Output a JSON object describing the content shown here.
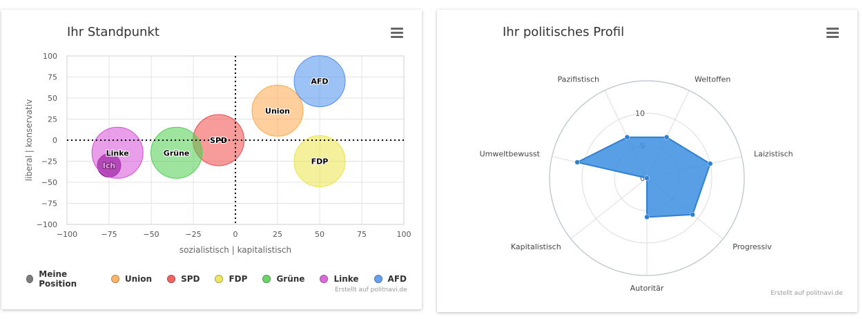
{
  "left_panel": {
    "title": "Ihr Standpunkt",
    "credit": "Erstellt auf politnavi.de",
    "menu_icon": "hamburger-menu-icon"
  },
  "right_panel": {
    "title": "Ihr politisches Profil",
    "credit": "Erstellt auf politnavi.de",
    "menu_icon": "hamburger-menu-icon"
  },
  "chart_data": [
    {
      "type": "bubble",
      "title": "Ihr Standpunkt",
      "xlabel": "sozialistisch | kapitalistisch",
      "ylabel": "liberal | konservativ",
      "xlim": [
        -100,
        100
      ],
      "ylim": [
        -100,
        100
      ],
      "xticks": [
        "−100",
        "−75",
        "−50",
        "−25",
        "0",
        "25",
        "50",
        "75",
        "100"
      ],
      "yticks": [
        "100",
        "75",
        "50",
        "25",
        "0",
        "−25",
        "−50",
        "−75",
        "−100"
      ],
      "grid": true,
      "legend_position": "bottom",
      "series": [
        {
          "name": "Meine Position",
          "label": "Ich",
          "x": -75,
          "y": -30,
          "size": "small",
          "color": "#7b1f86"
        },
        {
          "name": "Union",
          "label": "Union",
          "x": 25,
          "y": 35,
          "size": "large",
          "color": "#ffa94d"
        },
        {
          "name": "SPD",
          "label": "SPD",
          "x": -10,
          "y": 0,
          "size": "large",
          "color": "#f04848"
        },
        {
          "name": "FDP",
          "label": "FDP",
          "x": 50,
          "y": -25,
          "size": "large",
          "color": "#ebe44a"
        },
        {
          "name": "Grüne",
          "label": "Grüne",
          "x": -35,
          "y": -15,
          "size": "large",
          "color": "#4fce4f"
        },
        {
          "name": "Linke",
          "label": "Linke",
          "x": -70,
          "y": -15,
          "size": "large",
          "color": "#d64fd6"
        },
        {
          "name": "AFD",
          "label": "AFD",
          "x": 50,
          "y": 70,
          "size": "large",
          "color": "#4d8fef"
        }
      ],
      "legend_colors": {
        "Meine Position": "#666666",
        "Union": "#ffa94d",
        "SPD": "#f04848",
        "FDP": "#ebe44a",
        "Grüne": "#4fce4f",
        "Linke": "#d64fd6",
        "AFD": "#4d8fef"
      }
    },
    {
      "type": "radar",
      "title": "Ihr politisches Profil",
      "categories": [
        "Weltoffen",
        "Laizistisch",
        "Progressiv",
        "Autoritär",
        "Kapitalistisch",
        "Umweltbewusst",
        "Pazifistisch"
      ],
      "values": [
        7,
        10,
        9,
        6,
        0,
        11,
        7
      ],
      "rlim": [
        0,
        15
      ],
      "rticks": [
        "0",
        "5",
        "10"
      ],
      "color": "#3b8ee0"
    }
  ]
}
